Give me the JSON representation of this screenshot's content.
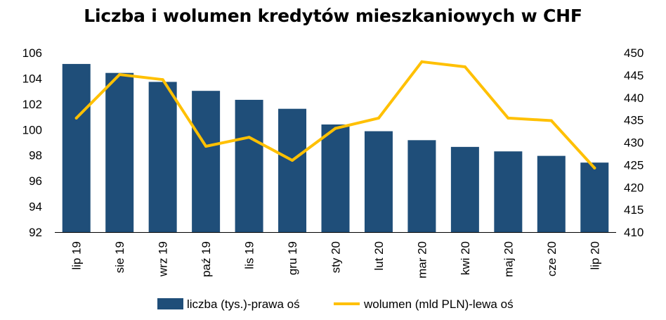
{
  "chart_data": {
    "type": "bar",
    "title": "Liczba i wolumen kredytów mieszkaniowych w CHF",
    "categories": [
      "lip 19",
      "sie 19",
      "wrz 19",
      "paź 19",
      "lis 19",
      "gru 19",
      "sty 20",
      "lut 20",
      "mar 20",
      "kwi 20",
      "maj 20",
      "cze 20",
      "lip 20"
    ],
    "left_axis": {
      "ylim": [
        92,
        106
      ],
      "ticks": [
        "92",
        "94",
        "96",
        "98",
        "100",
        "102",
        "104",
        "106"
      ]
    },
    "right_axis": {
      "ylim": [
        410,
        450
      ],
      "ticks": [
        "410",
        "415",
        "420",
        "425",
        "430",
        "435",
        "440",
        "445",
        "450"
      ]
    },
    "series": [
      {
        "name": "liczba (tys.)-prawa oś",
        "kind": "bar",
        "axis": "right",
        "color": "#1f4e79",
        "values": [
          447.5,
          445.5,
          443.5,
          441.5,
          439.5,
          437.5,
          434,
          432.5,
          430.5,
          429,
          428,
          427,
          425.5
        ]
      },
      {
        "name": "wolumen (mld PLN)-lewa oś",
        "kind": "line",
        "axis": "left",
        "color": "#ffc000",
        "values": [
          100.9,
          104.3,
          103.9,
          98.7,
          99.4,
          97.6,
          100.1,
          100.9,
          105.3,
          104.9,
          100.9,
          100.7,
          97.0
        ]
      }
    ],
    "grid": false,
    "legend": "bottom"
  }
}
